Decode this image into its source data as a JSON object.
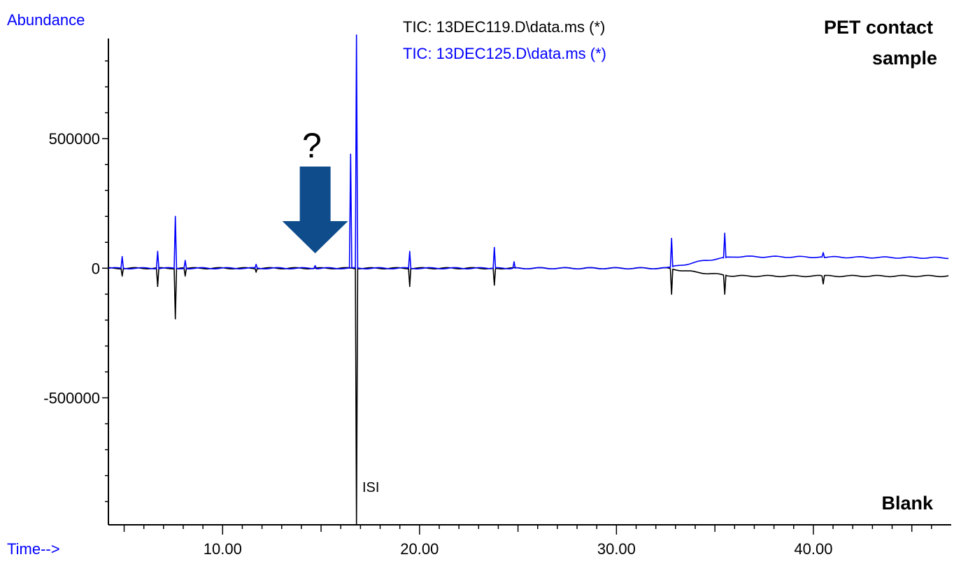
{
  "chart_data": {
    "type": "line",
    "ylabel": "Abundance",
    "xlabel": "Time-->",
    "xlim": [
      4.2,
      47.0
    ],
    "ylim": [
      -990000,
      900000
    ],
    "x_ticks": [
      10,
      20,
      30,
      40
    ],
    "x_tick_labels": [
      "10.00",
      "20.00",
      "30.00",
      "40.00"
    ],
    "y_ticks": [
      500000,
      0,
      -500000
    ],
    "y_tick_labels": [
      "500000",
      "0",
      "-500000"
    ],
    "grid": false,
    "legend_position": "top-center",
    "series": [
      {
        "name": "TIC: 13DEC119.D\\data.ms (*)",
        "color": "#000000",
        "direction": "negative",
        "baseline": [
          [
            4.2,
            0
          ],
          [
            32.5,
            0
          ],
          [
            34.0,
            -15000
          ],
          [
            36.0,
            -30000
          ],
          [
            47.0,
            -30000
          ]
        ],
        "peaks": [
          {
            "x": 4.9,
            "y": -30000
          },
          {
            "x": 6.7,
            "y": -70000
          },
          {
            "x": 7.6,
            "y": -195000
          },
          {
            "x": 8.1,
            "y": -30000
          },
          {
            "x": 11.7,
            "y": -15000
          },
          {
            "x": 16.8,
            "y": -990000
          },
          {
            "x": 19.5,
            "y": -70000
          },
          {
            "x": 23.8,
            "y": -65000
          },
          {
            "x": 32.8,
            "y": -100000
          },
          {
            "x": 35.5,
            "y": -100000
          },
          {
            "x": 40.5,
            "y": -60000
          }
        ]
      },
      {
        "name": "TIC: 13DEC125.D\\data.ms (*)",
        "color": "#0000ff",
        "direction": "positive",
        "baseline": [
          [
            4.2,
            0
          ],
          [
            32.5,
            0
          ],
          [
            34.5,
            30000
          ],
          [
            36.0,
            45000
          ],
          [
            47.0,
            40000
          ]
        ],
        "peaks": [
          {
            "x": 4.9,
            "y": 45000
          },
          {
            "x": 6.7,
            "y": 65000
          },
          {
            "x": 7.6,
            "y": 200000
          },
          {
            "x": 8.1,
            "y": 30000
          },
          {
            "x": 11.7,
            "y": 15000
          },
          {
            "x": 14.7,
            "y": 10000
          },
          {
            "x": 16.5,
            "y": 440000
          },
          {
            "x": 16.8,
            "y": 900000
          },
          {
            "x": 19.5,
            "y": 65000
          },
          {
            "x": 23.8,
            "y": 80000
          },
          {
            "x": 24.8,
            "y": 25000
          },
          {
            "x": 32.8,
            "y": 115000
          },
          {
            "x": 35.5,
            "y": 135000
          },
          {
            "x": 40.5,
            "y": 60000
          }
        ]
      }
    ],
    "annotations": [
      {
        "text": "PET contact",
        "position": "top-right"
      },
      {
        "text": "sample",
        "position": "top-right"
      },
      {
        "text": "Blank",
        "position": "bottom-right"
      },
      {
        "text": "?",
        "position": "above-arrow"
      },
      {
        "text": "ISI",
        "position": "main-peak"
      }
    ],
    "arrow": {
      "x": 14.7,
      "color": "#0e4c8c",
      "direction": "down"
    }
  },
  "colors": {
    "axis_label": "#0000ff",
    "axis": "#000000",
    "arrow": "#0e4c8c"
  }
}
